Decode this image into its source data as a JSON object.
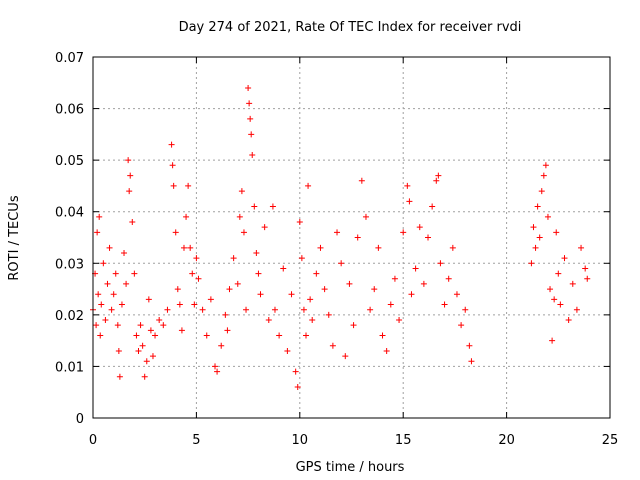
{
  "chart_data": {
    "type": "scatter",
    "title": "Day 274 of 2021, Rate Of TEC Index for receiver rvdi",
    "xlabel": "GPS time / hours",
    "ylabel": "ROTI / TECUs",
    "xlim": [
      0,
      25
    ],
    "ylim": [
      0,
      0.07
    ],
    "x_ticks": [
      0,
      5,
      10,
      15,
      20,
      25
    ],
    "y_ticks": [
      0,
      0.01,
      0.02,
      0.03,
      0.04,
      0.05,
      0.06,
      0.07
    ],
    "x_tick_labels": [
      "0",
      "5",
      "10",
      "15",
      "20",
      "25"
    ],
    "y_tick_labels": [
      "0",
      "0.01",
      "0.02",
      "0.03",
      "0.04",
      "0.05",
      "0.06",
      "0.07"
    ],
    "grid": true,
    "marker": "+",
    "color": "#ff0000",
    "series": [
      {
        "points": [
          [
            0.0,
            0.021
          ],
          [
            0.1,
            0.028
          ],
          [
            0.15,
            0.018
          ],
          [
            0.2,
            0.036
          ],
          [
            0.25,
            0.024
          ],
          [
            0.3,
            0.039
          ],
          [
            0.35,
            0.016
          ],
          [
            0.4,
            0.022
          ],
          [
            0.5,
            0.03
          ],
          [
            0.6,
            0.019
          ],
          [
            0.7,
            0.026
          ],
          [
            0.8,
            0.033
          ],
          [
            0.9,
            0.021
          ],
          [
            1.0,
            0.024
          ],
          [
            1.1,
            0.028
          ],
          [
            1.2,
            0.018
          ],
          [
            1.25,
            0.013
          ],
          [
            1.3,
            0.008
          ],
          [
            1.4,
            0.022
          ],
          [
            1.5,
            0.032
          ],
          [
            1.6,
            0.026
          ],
          [
            1.7,
            0.05
          ],
          [
            1.75,
            0.044
          ],
          [
            1.8,
            0.047
          ],
          [
            1.9,
            0.038
          ],
          [
            2.0,
            0.028
          ],
          [
            2.1,
            0.016
          ],
          [
            2.2,
            0.013
          ],
          [
            2.3,
            0.018
          ],
          [
            2.4,
            0.014
          ],
          [
            2.5,
            0.008
          ],
          [
            2.6,
            0.011
          ],
          [
            2.7,
            0.023
          ],
          [
            2.8,
            0.017
          ],
          [
            2.9,
            0.012
          ],
          [
            3.0,
            0.016
          ],
          [
            3.2,
            0.019
          ],
          [
            3.4,
            0.018
          ],
          [
            3.6,
            0.021
          ],
          [
            3.8,
            0.053
          ],
          [
            3.85,
            0.049
          ],
          [
            3.9,
            0.045
          ],
          [
            4.0,
            0.036
          ],
          [
            4.1,
            0.025
          ],
          [
            4.2,
            0.022
          ],
          [
            4.3,
            0.017
          ],
          [
            4.4,
            0.033
          ],
          [
            4.5,
            0.039
          ],
          [
            4.6,
            0.045
          ],
          [
            4.7,
            0.033
          ],
          [
            4.8,
            0.028
          ],
          [
            4.9,
            0.022
          ],
          [
            5.0,
            0.031
          ],
          [
            5.1,
            0.027
          ],
          [
            5.3,
            0.021
          ],
          [
            5.5,
            0.016
          ],
          [
            5.7,
            0.023
          ],
          [
            5.9,
            0.01
          ],
          [
            6.0,
            0.009
          ],
          [
            6.2,
            0.014
          ],
          [
            6.4,
            0.02
          ],
          [
            6.5,
            0.017
          ],
          [
            6.6,
            0.025
          ],
          [
            6.8,
            0.031
          ],
          [
            7.0,
            0.026
          ],
          [
            7.1,
            0.039
          ],
          [
            7.2,
            0.044
          ],
          [
            7.3,
            0.036
          ],
          [
            7.4,
            0.021
          ],
          [
            7.5,
            0.064
          ],
          [
            7.55,
            0.061
          ],
          [
            7.6,
            0.058
          ],
          [
            7.65,
            0.055
          ],
          [
            7.7,
            0.051
          ],
          [
            7.8,
            0.041
          ],
          [
            7.9,
            0.032
          ],
          [
            8.0,
            0.028
          ],
          [
            8.1,
            0.024
          ],
          [
            8.3,
            0.037
          ],
          [
            8.5,
            0.019
          ],
          [
            8.7,
            0.041
          ],
          [
            8.8,
            0.021
          ],
          [
            9.0,
            0.016
          ],
          [
            9.2,
            0.029
          ],
          [
            9.4,
            0.013
          ],
          [
            9.6,
            0.024
          ],
          [
            9.8,
            0.009
          ],
          [
            9.9,
            0.006
          ],
          [
            10.0,
            0.038
          ],
          [
            10.1,
            0.031
          ],
          [
            10.2,
            0.021
          ],
          [
            10.3,
            0.016
          ],
          [
            10.4,
            0.045
          ],
          [
            10.5,
            0.023
          ],
          [
            10.6,
            0.019
          ],
          [
            10.8,
            0.028
          ],
          [
            11.0,
            0.033
          ],
          [
            11.2,
            0.025
          ],
          [
            11.4,
            0.02
          ],
          [
            11.6,
            0.014
          ],
          [
            11.8,
            0.036
          ],
          [
            12.0,
            0.03
          ],
          [
            12.2,
            0.012
          ],
          [
            12.4,
            0.026
          ],
          [
            12.6,
            0.018
          ],
          [
            12.8,
            0.035
          ],
          [
            13.0,
            0.046
          ],
          [
            13.2,
            0.039
          ],
          [
            13.4,
            0.021
          ],
          [
            13.6,
            0.025
          ],
          [
            13.8,
            0.033
          ],
          [
            14.0,
            0.016
          ],
          [
            14.2,
            0.013
          ],
          [
            14.4,
            0.022
          ],
          [
            14.6,
            0.027
          ],
          [
            14.8,
            0.019
          ],
          [
            15.0,
            0.036
          ],
          [
            15.2,
            0.045
          ],
          [
            15.3,
            0.042
          ],
          [
            15.4,
            0.024
          ],
          [
            15.6,
            0.029
          ],
          [
            15.8,
            0.037
          ],
          [
            16.0,
            0.026
          ],
          [
            16.2,
            0.035
          ],
          [
            16.4,
            0.041
          ],
          [
            16.6,
            0.046
          ],
          [
            16.7,
            0.047
          ],
          [
            16.8,
            0.03
          ],
          [
            17.0,
            0.022
          ],
          [
            17.2,
            0.027
          ],
          [
            17.4,
            0.033
          ],
          [
            17.6,
            0.024
          ],
          [
            17.8,
            0.018
          ],
          [
            18.0,
            0.021
          ],
          [
            18.2,
            0.014
          ],
          [
            18.3,
            0.011
          ],
          [
            21.2,
            0.03
          ],
          [
            21.3,
            0.037
          ],
          [
            21.4,
            0.033
          ],
          [
            21.5,
            0.041
          ],
          [
            21.6,
            0.035
          ],
          [
            21.7,
            0.044
          ],
          [
            21.8,
            0.047
          ],
          [
            21.9,
            0.049
          ],
          [
            22.0,
            0.039
          ],
          [
            22.1,
            0.025
          ],
          [
            22.2,
            0.015
          ],
          [
            22.3,
            0.023
          ],
          [
            22.4,
            0.036
          ],
          [
            22.5,
            0.028
          ],
          [
            22.6,
            0.022
          ],
          [
            22.8,
            0.031
          ],
          [
            23.0,
            0.019
          ],
          [
            23.2,
            0.026
          ],
          [
            23.4,
            0.021
          ],
          [
            23.6,
            0.033
          ],
          [
            23.8,
            0.029
          ],
          [
            23.9,
            0.027
          ]
        ]
      }
    ]
  }
}
